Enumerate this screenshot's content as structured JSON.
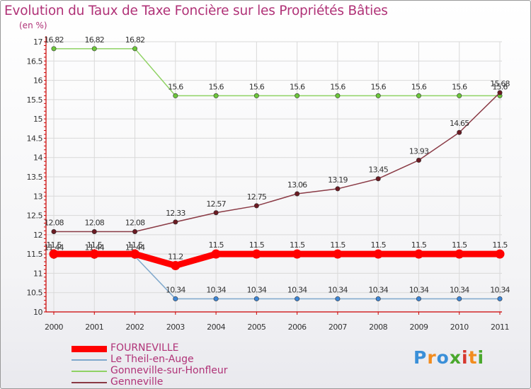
{
  "title": "Evolution du Taux de Taxe Foncière sur les Propriétés Bâties",
  "unit_label": "(en %)",
  "logo": {
    "text": "Proxiti",
    "letters": [
      "P",
      "r",
      "o",
      "x",
      "i",
      "t",
      "i"
    ],
    "colors": [
      "#3a8fd8",
      "#f28c1e",
      "#3a8fd8",
      "#4aa82d",
      "#d6372e",
      "#f28c1e",
      "#4aa82d"
    ]
  },
  "colors": {
    "axis": "#cc0000",
    "grid": "#d9d9d9",
    "text": "#333333",
    "accent": "#b03277"
  },
  "chart_data": {
    "type": "line",
    "title": "Evolution du Taux de Taxe Foncière sur les Propriétés Bâties",
    "ylabel": "(en %)",
    "xlabel": "",
    "ylim": [
      10,
      17
    ],
    "yticks": [
      "10",
      "10.5",
      "11",
      "11.5",
      "12",
      "12.5",
      "13",
      "13.5",
      "14",
      "14.5",
      "15",
      "15.5",
      "16",
      "16.5",
      "17"
    ],
    "categories": [
      "2000",
      "2001",
      "2002",
      "2003",
      "2004",
      "2005",
      "2006",
      "2007",
      "2008",
      "2009",
      "2010",
      "2011"
    ],
    "legend_position": "bottom-left",
    "series": [
      {
        "name": "FOURNEVILLE",
        "color": "#ff0000",
        "marker": "#ff0000",
        "width": 9,
        "values": [
          11.5,
          11.5,
          11.5,
          11.2,
          11.5,
          11.5,
          11.5,
          11.5,
          11.5,
          11.5,
          11.5,
          11.5
        ],
        "labels": [
          "11.5",
          "11.5",
          "11.5",
          "11.2",
          "11.5",
          "11.5",
          "11.5",
          "11.5",
          "11.5",
          "11.5",
          "11.5",
          "11.5"
        ]
      },
      {
        "name": "Le Theil-en-Auge",
        "color": "#7fa8cc",
        "marker": "#3d86d6",
        "width": 1.5,
        "values": [
          11.44,
          11.44,
          11.44,
          10.34,
          10.34,
          10.34,
          10.34,
          10.34,
          10.34,
          10.34,
          10.34,
          10.34
        ],
        "labels": [
          "11.44",
          "11.44",
          "11.44",
          "10.34",
          "10.34",
          "10.34",
          "10.34",
          "10.34",
          "10.34",
          "10.34",
          "10.34",
          "10.34"
        ]
      },
      {
        "name": "Gonneville-sur-Honfleur",
        "color": "#8fd264",
        "marker": "#6cc73a",
        "width": 1.5,
        "values": [
          16.82,
          16.82,
          16.82,
          15.6,
          15.6,
          15.6,
          15.6,
          15.6,
          15.6,
          15.6,
          15.6,
          15.6
        ],
        "labels": [
          "16.82",
          "16.82",
          "16.82",
          "15.6",
          "15.6",
          "15.6",
          "15.6",
          "15.6",
          "15.6",
          "15.6",
          "15.6",
          "15.6"
        ]
      },
      {
        "name": "Genneville",
        "color": "#8a3a45",
        "marker": "#6b1a22",
        "width": 1.5,
        "values": [
          12.08,
          12.08,
          12.08,
          12.33,
          12.57,
          12.75,
          13.06,
          13.19,
          13.45,
          13.93,
          14.65,
          15.68
        ],
        "labels": [
          "12.08",
          "12.08",
          "12.08",
          "12.33",
          "12.57",
          "12.75",
          "13.06",
          "13.19",
          "13.45",
          "13.93",
          "14.65",
          "15.68"
        ]
      }
    ]
  }
}
